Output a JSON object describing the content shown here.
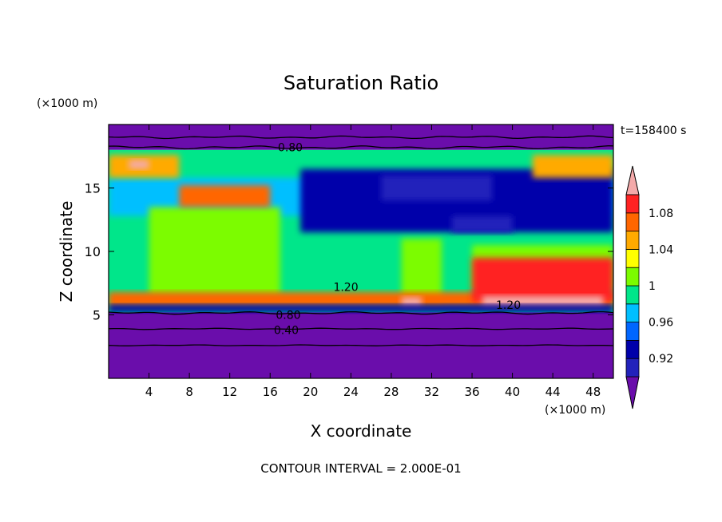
{
  "chart_data": {
    "type": "heatmap",
    "title": "Saturation Ratio",
    "xlabel": "X coordinate",
    "ylabel": "Z coordinate",
    "x_unit": "(×1000 m)",
    "y_unit": "(×1000 m)",
    "xlim": [
      0,
      50
    ],
    "ylim": [
      0,
      20
    ],
    "x_ticks": [
      4,
      8,
      12,
      16,
      20,
      24,
      28,
      32,
      36,
      40,
      44,
      48
    ],
    "y_ticks": [
      5,
      10,
      15
    ],
    "time_label": "t=158400 s",
    "footer": "CONTOUR INTERVAL = 2.000E-01",
    "colorbar": {
      "levels": [
        0.9,
        0.92,
        0.94,
        0.96,
        0.98,
        1.0,
        1.02,
        1.04,
        1.06,
        1.08,
        1.1
      ],
      "tick_labels": [
        "0.92",
        "0.96",
        "1",
        "1.04",
        "1.08"
      ],
      "tick_values": [
        0.92,
        0.96,
        1.0,
        1.04,
        1.08
      ],
      "colors": [
        "#6a0dab",
        "#2222bb",
        "#0000aa",
        "#0066ff",
        "#00bfff",
        "#00e68a",
        "#7cfc00",
        "#ffff00",
        "#ffaa00",
        "#ff6600",
        "#ff2222",
        "#f4aaaa"
      ],
      "under_color": "#6a0dab",
      "over_color": "#f4aaaa"
    },
    "contour_labels": [
      {
        "text": "0.80",
        "x": 18,
        "z": 18.2
      },
      {
        "text": "0.80",
        "x": 17.8,
        "z": 5.0
      },
      {
        "text": "0.40",
        "x": 17.6,
        "z": 3.8
      },
      {
        "text": "1.20",
        "x": 39.6,
        "z": 5.8
      },
      {
        "text": "1.20",
        "x": 23.5,
        "z": 7.2
      }
    ],
    "regions": [
      {
        "value": 0.88,
        "x0": 0,
        "x1": 50,
        "z0": 0,
        "z1": 5.2
      },
      {
        "value": 0.88,
        "x0": 0,
        "x1": 50,
        "z0": 18.0,
        "z1": 20
      },
      {
        "value": 0.99,
        "x0": 0,
        "x1": 50,
        "z0": 5.2,
        "z1": 18.0
      },
      {
        "value": 0.97,
        "x0": 0,
        "x1": 50,
        "z0": 12.8,
        "z1": 15.8
      },
      {
        "value": 0.93,
        "x0": 19,
        "x1": 50,
        "z0": 11.5,
        "z1": 16.5
      },
      {
        "value": 0.91,
        "x0": 27,
        "x1": 38,
        "z0": 14.0,
        "z1": 16.0
      },
      {
        "value": 0.91,
        "x0": 34,
        "x1": 40,
        "z0": 11.5,
        "z1": 12.8
      },
      {
        "value": 1.01,
        "x0": 4,
        "x1": 17,
        "z0": 6.5,
        "z1": 13.5
      },
      {
        "value": 1.01,
        "x0": 29,
        "x1": 33,
        "z0": 5.8,
        "z1": 11.0
      },
      {
        "value": 1.01,
        "x0": 36,
        "x1": 50,
        "z0": 7.0,
        "z1": 10.5
      },
      {
        "value": 1.05,
        "x0": 0,
        "x1": 7,
        "z0": 15.8,
        "z1": 17.6
      },
      {
        "value": 1.05,
        "x0": 42,
        "x1": 50,
        "z0": 15.8,
        "z1": 17.6
      },
      {
        "value": 1.07,
        "x0": 7,
        "x1": 16,
        "z0": 13.5,
        "z1": 15.2
      },
      {
        "value": 1.07,
        "x0": 0,
        "x1": 50,
        "z0": 5.6,
        "z1": 6.8
      },
      {
        "value": 1.09,
        "x0": 36,
        "x1": 50,
        "z0": 6.0,
        "z1": 9.5
      },
      {
        "value": 1.12,
        "x0": 2,
        "x1": 4,
        "z0": 16.5,
        "z1": 17.2
      },
      {
        "value": 1.12,
        "x0": 37,
        "x1": 49,
        "z0": 5.6,
        "z1": 6.5
      },
      {
        "value": 1.12,
        "x0": 29,
        "x1": 31,
        "z0": 5.6,
        "z1": 6.4
      },
      {
        "value": 0.93,
        "x0": 0,
        "x1": 50,
        "z0": 5.2,
        "z1": 5.8
      }
    ]
  }
}
